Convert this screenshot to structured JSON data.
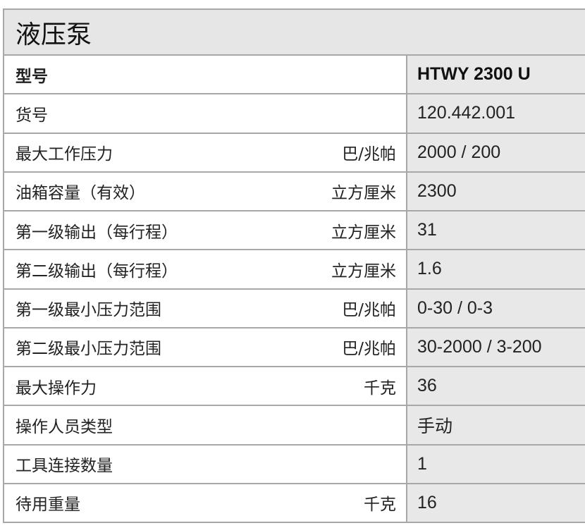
{
  "title": "液压泵",
  "rows": [
    {
      "label": "型号",
      "unit": "",
      "value": "HTWY 2300 U"
    },
    {
      "label": "货号",
      "unit": "",
      "value": "120.442.001"
    },
    {
      "label": "最大工作压力",
      "unit": "巴/兆帕",
      "value": "2000 / 200"
    },
    {
      "label": "油箱容量（有效）",
      "unit": "立方厘米",
      "value": "2300"
    },
    {
      "label": "第一级输出（每行程）",
      "unit": "立方厘米",
      "value": "31"
    },
    {
      "label": "第二级输出（每行程）",
      "unit": "立方厘米",
      "value": "1.6"
    },
    {
      "label": "第一级最小压力范围",
      "unit": "巴/兆帕",
      "value": "0-30 / 0-3"
    },
    {
      "label": "第二级最小压力范围",
      "unit": "巴/兆帕",
      "value": "30-2000 / 3-200"
    },
    {
      "label": "最大操作力",
      "unit": "千克",
      "value": "36"
    },
    {
      "label": "操作人员类型",
      "unit": "",
      "value": "手动"
    },
    {
      "label": "工具连接数量",
      "unit": "",
      "value": "1"
    },
    {
      "label": "待用重量",
      "unit": "千克",
      "value": "16"
    }
  ]
}
